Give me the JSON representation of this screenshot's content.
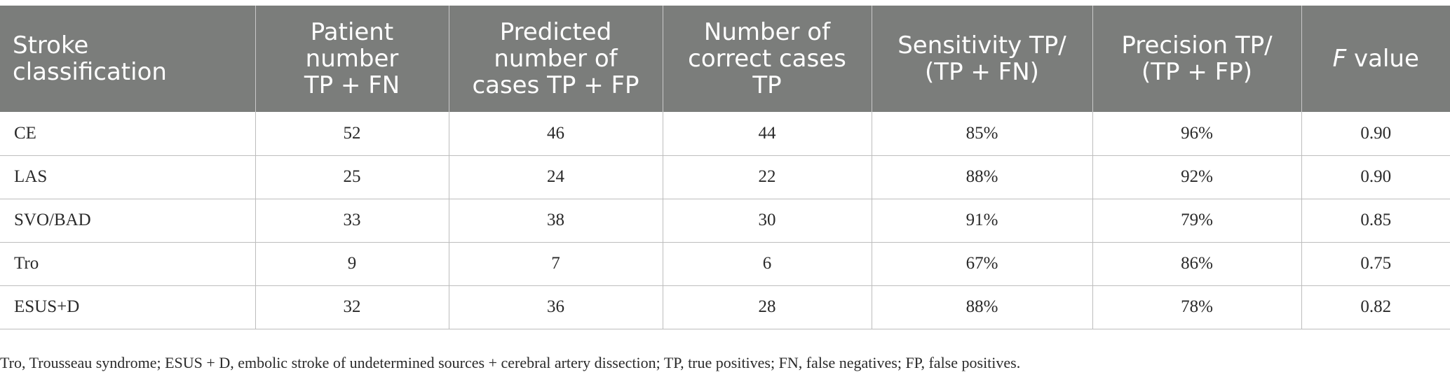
{
  "table": {
    "headers": [
      [
        "Stroke",
        "classification"
      ],
      [
        "Patient",
        "number",
        "TP + FN"
      ],
      [
        "Predicted",
        "number of",
        "cases TP + FP"
      ],
      [
        "Number of",
        "correct cases",
        "TP"
      ],
      [
        "Sensitivity TP/",
        "(TP + FN)"
      ],
      [
        "Precision TP/",
        "(TP + FP)"
      ],
      [
        "F value"
      ]
    ],
    "rows": [
      [
        "CE",
        "52",
        "46",
        "44",
        "85%",
        "96%",
        "0.90"
      ],
      [
        "LAS",
        "25",
        "24",
        "22",
        "88%",
        "92%",
        "0.90"
      ],
      [
        "SVO/BAD",
        "33",
        "38",
        "30",
        "91%",
        "79%",
        "0.85"
      ],
      [
        "Tro",
        "9",
        "7",
        "6",
        "67%",
        "86%",
        "0.75"
      ],
      [
        "ESUS+D",
        "32",
        "36",
        "28",
        "88%",
        "78%",
        "0.82"
      ]
    ]
  },
  "footnote": "Tro, Trousseau syndrome; ESUS + D, embolic stroke of undetermined sources + cerebral artery dissection; TP, true positives; FN, false negatives; FP, false positives."
}
